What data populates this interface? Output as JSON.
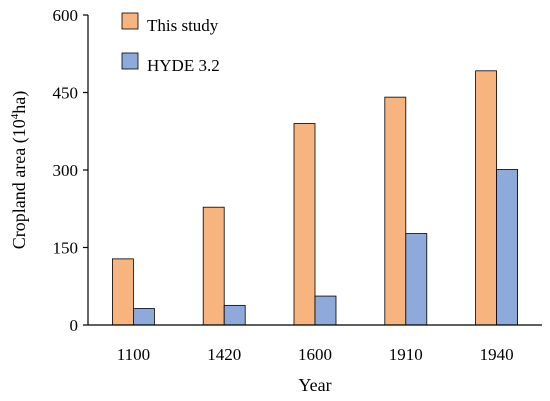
{
  "chart_data": {
    "type": "bar",
    "categories": [
      "1100",
      "1420",
      "1600",
      "1910",
      "1940"
    ],
    "series": [
      {
        "name": "This study",
        "values": [
          128,
          228,
          390,
          441,
          492
        ],
        "color": "#F7B47F"
      },
      {
        "name": "HYDE 3.2",
        "values": [
          32,
          38,
          56,
          177,
          301
        ],
        "color": "#8EAADB"
      }
    ],
    "xlabel": "Year",
    "ylabel_prefix": "Cropland area (10",
    "ylabel_sup": "4",
    "ylabel_suffix": "ha)",
    "ylim": [
      0,
      600
    ],
    "yticks": [
      "0",
      "150",
      "300",
      "450",
      "600"
    ],
    "grid": false,
    "legend_position": "top-left"
  }
}
